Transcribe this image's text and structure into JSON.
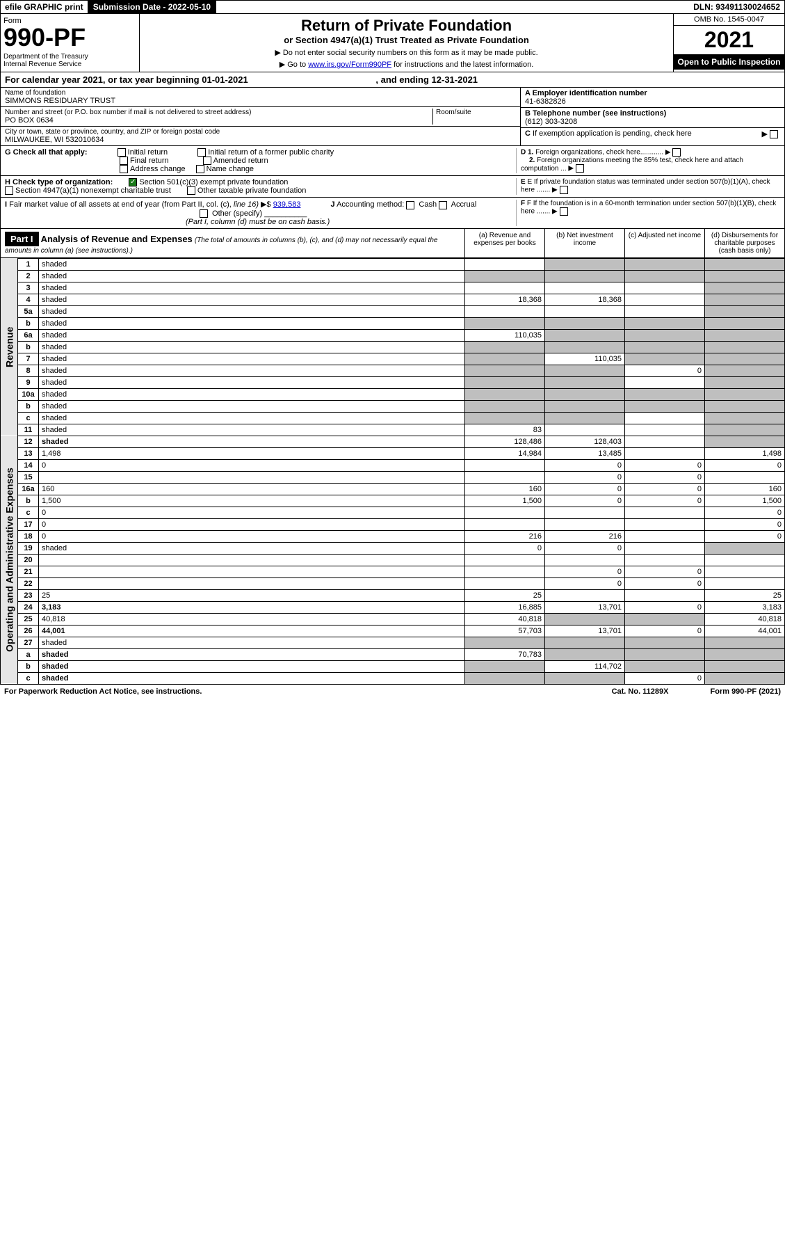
{
  "topbar": {
    "efile": "efile GRAPHIC print",
    "subdate": "Submission Date - 2022-05-10",
    "dln": "DLN: 93491130024652"
  },
  "header": {
    "form_label": "Form",
    "form_number": "990-PF",
    "dept": "Department of the Treasury\nInternal Revenue Service",
    "title": "Return of Private Foundation",
    "subtitle": "or Section 4947(a)(1) Trust Treated as Private Foundation",
    "instr1": "▶ Do not enter social security numbers on this form as it may be made public.",
    "instr2": "▶ Go to ",
    "instr_link": "www.irs.gov/Form990PF",
    "instr3": " for instructions and the latest information.",
    "omb": "OMB No. 1545-0047",
    "year": "2021",
    "open": "Open to Public Inspection"
  },
  "calendar": {
    "prefix": "For calendar year 2021, or tax year beginning ",
    "begin": "01-01-2021",
    "mid": ", and ending ",
    "end": "12-31-2021"
  },
  "info": {
    "name_label": "Name of foundation",
    "name": "SIMMONS RESIDUARY TRUST",
    "addr_label": "Number and street (or P.O. box number if mail is not delivered to street address)",
    "addr": "PO BOX 0634",
    "room_label": "Room/suite",
    "city_label": "City or town, state or province, country, and ZIP or foreign postal code",
    "city": "MILWAUKEE, WI  532010634",
    "a_label": "A Employer identification number",
    "a": "41-6382826",
    "b_label": "B Telephone number (see instructions)",
    "b": "(612) 303-3208",
    "c_label": "C If exemption application is pending, check here"
  },
  "checks": {
    "g_label": "G Check all that apply:",
    "g_opts": [
      "Initial return",
      "Final return",
      "Address change",
      "Initial return of a former public charity",
      "Amended return",
      "Name change"
    ],
    "h_label": "H Check type of organization:",
    "h_opt1": "Section 501(c)(3) exempt private foundation",
    "h_opt2": "Section 4947(a)(1) nonexempt charitable trust",
    "h_opt3": "Other taxable private foundation",
    "i_label": "I Fair market value of all assets at end of year (from Part II, col. (c), line 16) ▶$",
    "i_val": "939,583",
    "j_label": "J Accounting method:",
    "j_cash": "Cash",
    "j_accrual": "Accrual",
    "j_other": "Other (specify)",
    "j_note": "(Part I, column (d) must be on cash basis.)",
    "d1": "D 1. Foreign organizations, check here............",
    "d2": "2. Foreign organizations meeting the 85% test, check here and attach computation ...",
    "e": "E If private foundation status was terminated under section 507(b)(1)(A), check here .......",
    "f": "F If the foundation is in a 60-month termination under section 507(b)(1)(B), check here ......."
  },
  "part1": {
    "label": "Part I",
    "title": "Analysis of Revenue and Expenses",
    "title_note": "(The total of amounts in columns (b), (c), and (d) may not necessarily equal the amounts in column (a) (see instructions).)",
    "col_a": "(a) Revenue and expenses per books",
    "col_b": "(b) Net investment income",
    "col_c": "(c) Adjusted net income",
    "col_d": "(d) Disbursements for charitable purposes (cash basis only)"
  },
  "side": {
    "revenue": "Revenue",
    "expenses": "Operating and Administrative Expenses"
  },
  "rows": [
    {
      "n": "1",
      "d": "shaded",
      "a": "",
      "b": "shaded",
      "c": "shaded"
    },
    {
      "n": "2",
      "d": "shaded",
      "a": "shaded",
      "b": "shaded",
      "c": "shaded"
    },
    {
      "n": "3",
      "d": "shaded",
      "a": "",
      "b": "",
      "c": ""
    },
    {
      "n": "4",
      "d": "shaded",
      "a": "18,368",
      "b": "18,368",
      "c": ""
    },
    {
      "n": "5a",
      "d": "shaded",
      "a": "",
      "b": "",
      "c": ""
    },
    {
      "n": "b",
      "d": "shaded",
      "a": "shaded",
      "b": "shaded",
      "c": "shaded"
    },
    {
      "n": "6a",
      "d": "shaded",
      "a": "110,035",
      "b": "shaded",
      "c": "shaded"
    },
    {
      "n": "b",
      "d": "shaded",
      "a": "shaded",
      "b": "shaded",
      "c": "shaded"
    },
    {
      "n": "7",
      "d": "shaded",
      "a": "shaded",
      "b": "110,035",
      "c": "shaded"
    },
    {
      "n": "8",
      "d": "shaded",
      "a": "shaded",
      "b": "shaded",
      "c": "0"
    },
    {
      "n": "9",
      "d": "shaded",
      "a": "shaded",
      "b": "shaded",
      "c": ""
    },
    {
      "n": "10a",
      "d": "shaded",
      "a": "shaded",
      "b": "shaded",
      "c": "shaded"
    },
    {
      "n": "b",
      "d": "shaded",
      "a": "shaded",
      "b": "shaded",
      "c": "shaded"
    },
    {
      "n": "c",
      "d": "shaded",
      "a": "shaded",
      "b": "shaded",
      "c": ""
    },
    {
      "n": "11",
      "d": "shaded",
      "a": "83",
      "b": "",
      "c": ""
    },
    {
      "n": "12",
      "d": "shaded",
      "a": "128,486",
      "b": "128,403",
      "c": "",
      "bold": true
    },
    {
      "n": "13",
      "d": "1,498",
      "a": "14,984",
      "b": "13,485",
      "c": ""
    },
    {
      "n": "14",
      "d": "0",
      "a": "",
      "b": "0",
      "c": "0"
    },
    {
      "n": "15",
      "d": "",
      "a": "",
      "b": "0",
      "c": "0"
    },
    {
      "n": "16a",
      "d": "160",
      "a": "160",
      "b": "0",
      "c": "0"
    },
    {
      "n": "b",
      "d": "1,500",
      "a": "1,500",
      "b": "0",
      "c": "0"
    },
    {
      "n": "c",
      "d": "0",
      "a": "",
      "b": "",
      "c": ""
    },
    {
      "n": "17",
      "d": "0",
      "a": "",
      "b": "",
      "c": ""
    },
    {
      "n": "18",
      "d": "0",
      "a": "216",
      "b": "216",
      "c": ""
    },
    {
      "n": "19",
      "d": "shaded",
      "a": "0",
      "b": "0",
      "c": ""
    },
    {
      "n": "20",
      "d": "",
      "a": "",
      "b": "",
      "c": ""
    },
    {
      "n": "21",
      "d": "",
      "a": "",
      "b": "0",
      "c": "0"
    },
    {
      "n": "22",
      "d": "",
      "a": "",
      "b": "0",
      "c": "0"
    },
    {
      "n": "23",
      "d": "25",
      "a": "25",
      "b": "",
      "c": ""
    },
    {
      "n": "24",
      "d": "3,183",
      "a": "16,885",
      "b": "13,701",
      "c": "0",
      "bold": true
    },
    {
      "n": "25",
      "d": "40,818",
      "a": "40,818",
      "b": "shaded",
      "c": "shaded"
    },
    {
      "n": "26",
      "d": "44,001",
      "a": "57,703",
      "b": "13,701",
      "c": "0",
      "bold": true
    },
    {
      "n": "27",
      "d": "shaded",
      "a": "shaded",
      "b": "shaded",
      "c": "shaded"
    },
    {
      "n": "a",
      "d": "shaded",
      "a": "70,783",
      "b": "shaded",
      "c": "shaded",
      "bold": true
    },
    {
      "n": "b",
      "d": "shaded",
      "a": "shaded",
      "b": "114,702",
      "c": "shaded",
      "bold": true
    },
    {
      "n": "c",
      "d": "shaded",
      "a": "shaded",
      "b": "shaded",
      "c": "0",
      "bold": true
    }
  ],
  "footer": {
    "left": "For Paperwork Reduction Act Notice, see instructions.",
    "cat": "Cat. No. 11289X",
    "form": "Form 990-PF (2021)"
  }
}
